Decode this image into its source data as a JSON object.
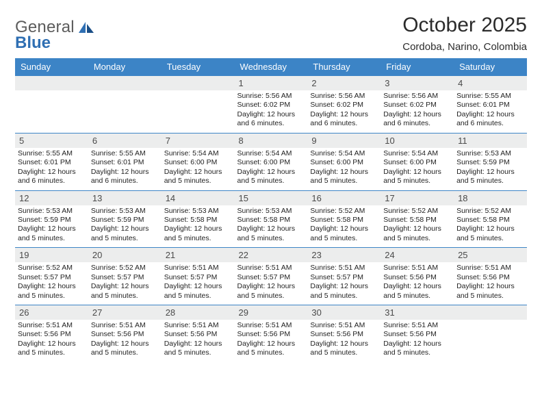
{
  "brand": {
    "part1": "General",
    "part2": "Blue"
  },
  "title": "October 2025",
  "subtitle": "Cordoba, Narino, Colombia",
  "colors": {
    "header_bg": "#3c84c6",
    "header_text": "#ffffff",
    "daynum_bg": "#eceded",
    "rule": "#3c84c6",
    "text": "#222222",
    "brand_gray": "#5c5c5c",
    "brand_blue": "#2f6fb3",
    "page_bg": "#ffffff"
  },
  "fontsizes": {
    "title": 30,
    "subtitle": 15,
    "weekday": 13,
    "daynum": 13,
    "body": 10.5
  },
  "weekdays": [
    "Sunday",
    "Monday",
    "Tuesday",
    "Wednesday",
    "Thursday",
    "Friday",
    "Saturday"
  ],
  "first_weekday_index": 3,
  "days": [
    {
      "n": 1,
      "sunrise": "5:56 AM",
      "sunset": "6:02 PM",
      "daylight": "12 hours and 6 minutes."
    },
    {
      "n": 2,
      "sunrise": "5:56 AM",
      "sunset": "6:02 PM",
      "daylight": "12 hours and 6 minutes."
    },
    {
      "n": 3,
      "sunrise": "5:56 AM",
      "sunset": "6:02 PM",
      "daylight": "12 hours and 6 minutes."
    },
    {
      "n": 4,
      "sunrise": "5:55 AM",
      "sunset": "6:01 PM",
      "daylight": "12 hours and 6 minutes."
    },
    {
      "n": 5,
      "sunrise": "5:55 AM",
      "sunset": "6:01 PM",
      "daylight": "12 hours and 6 minutes."
    },
    {
      "n": 6,
      "sunrise": "5:55 AM",
      "sunset": "6:01 PM",
      "daylight": "12 hours and 6 minutes."
    },
    {
      "n": 7,
      "sunrise": "5:54 AM",
      "sunset": "6:00 PM",
      "daylight": "12 hours and 5 minutes."
    },
    {
      "n": 8,
      "sunrise": "5:54 AM",
      "sunset": "6:00 PM",
      "daylight": "12 hours and 5 minutes."
    },
    {
      "n": 9,
      "sunrise": "5:54 AM",
      "sunset": "6:00 PM",
      "daylight": "12 hours and 5 minutes."
    },
    {
      "n": 10,
      "sunrise": "5:54 AM",
      "sunset": "6:00 PM",
      "daylight": "12 hours and 5 minutes."
    },
    {
      "n": 11,
      "sunrise": "5:53 AM",
      "sunset": "5:59 PM",
      "daylight": "12 hours and 5 minutes."
    },
    {
      "n": 12,
      "sunrise": "5:53 AM",
      "sunset": "5:59 PM",
      "daylight": "12 hours and 5 minutes."
    },
    {
      "n": 13,
      "sunrise": "5:53 AM",
      "sunset": "5:59 PM",
      "daylight": "12 hours and 5 minutes."
    },
    {
      "n": 14,
      "sunrise": "5:53 AM",
      "sunset": "5:58 PM",
      "daylight": "12 hours and 5 minutes."
    },
    {
      "n": 15,
      "sunrise": "5:53 AM",
      "sunset": "5:58 PM",
      "daylight": "12 hours and 5 minutes."
    },
    {
      "n": 16,
      "sunrise": "5:52 AM",
      "sunset": "5:58 PM",
      "daylight": "12 hours and 5 minutes."
    },
    {
      "n": 17,
      "sunrise": "5:52 AM",
      "sunset": "5:58 PM",
      "daylight": "12 hours and 5 minutes."
    },
    {
      "n": 18,
      "sunrise": "5:52 AM",
      "sunset": "5:58 PM",
      "daylight": "12 hours and 5 minutes."
    },
    {
      "n": 19,
      "sunrise": "5:52 AM",
      "sunset": "5:57 PM",
      "daylight": "12 hours and 5 minutes."
    },
    {
      "n": 20,
      "sunrise": "5:52 AM",
      "sunset": "5:57 PM",
      "daylight": "12 hours and 5 minutes."
    },
    {
      "n": 21,
      "sunrise": "5:51 AM",
      "sunset": "5:57 PM",
      "daylight": "12 hours and 5 minutes."
    },
    {
      "n": 22,
      "sunrise": "5:51 AM",
      "sunset": "5:57 PM",
      "daylight": "12 hours and 5 minutes."
    },
    {
      "n": 23,
      "sunrise": "5:51 AM",
      "sunset": "5:57 PM",
      "daylight": "12 hours and 5 minutes."
    },
    {
      "n": 24,
      "sunrise": "5:51 AM",
      "sunset": "5:56 PM",
      "daylight": "12 hours and 5 minutes."
    },
    {
      "n": 25,
      "sunrise": "5:51 AM",
      "sunset": "5:56 PM",
      "daylight": "12 hours and 5 minutes."
    },
    {
      "n": 26,
      "sunrise": "5:51 AM",
      "sunset": "5:56 PM",
      "daylight": "12 hours and 5 minutes."
    },
    {
      "n": 27,
      "sunrise": "5:51 AM",
      "sunset": "5:56 PM",
      "daylight": "12 hours and 5 minutes."
    },
    {
      "n": 28,
      "sunrise": "5:51 AM",
      "sunset": "5:56 PM",
      "daylight": "12 hours and 5 minutes."
    },
    {
      "n": 29,
      "sunrise": "5:51 AM",
      "sunset": "5:56 PM",
      "daylight": "12 hours and 5 minutes."
    },
    {
      "n": 30,
      "sunrise": "5:51 AM",
      "sunset": "5:56 PM",
      "daylight": "12 hours and 5 minutes."
    },
    {
      "n": 31,
      "sunrise": "5:51 AM",
      "sunset": "5:56 PM",
      "daylight": "12 hours and 5 minutes."
    }
  ]
}
